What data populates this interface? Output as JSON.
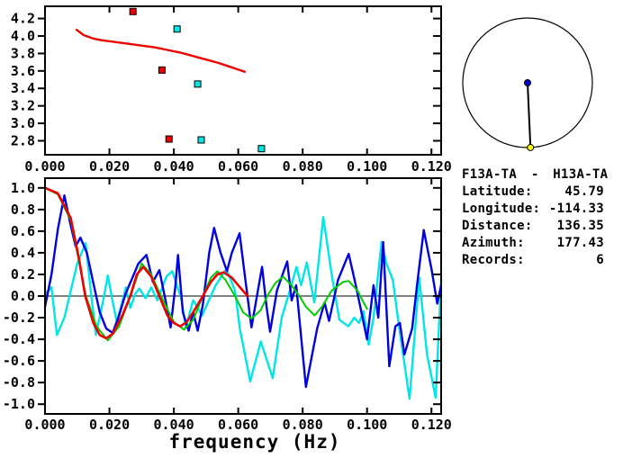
{
  "window": {
    "background": "#ffffff",
    "axis_color": "#000000"
  },
  "station_info": {
    "station_pair": "F13A-TA - H13A-TA",
    "fields": [
      {
        "label": "Latitude:",
        "value": "45.79"
      },
      {
        "label": "Longitude:",
        "value": "-114.33"
      },
      {
        "label": "Distance:",
        "value": "136.35"
      },
      {
        "label": "Azimuth:",
        "value": "177.43"
      },
      {
        "label": "Records:",
        "value": "6"
      }
    ]
  },
  "azimuth_map": {
    "azimuth_deg": 177.43,
    "circle_color": "#000000",
    "center_dot_color": "#0000cc",
    "station_dot_color": "#ffff00",
    "line_color": "#000000"
  },
  "chart_data": [
    {
      "id": "dispersion",
      "type": "scatter",
      "title": "",
      "xlabel": "",
      "ylabel": "",
      "xlim": [
        0,
        0.123
      ],
      "ylim": [
        2.64,
        4.34
      ],
      "grid": false,
      "xticks": [
        {
          "v": 0.0,
          "label": "0.000"
        },
        {
          "v": 0.02,
          "label": "0.020"
        },
        {
          "v": 0.04,
          "label": "0.040"
        },
        {
          "v": 0.06,
          "label": "0.060"
        },
        {
          "v": 0.08,
          "label": "0.080"
        },
        {
          "v": 0.1,
          "label": "0.100"
        },
        {
          "v": 0.12,
          "label": "0.120"
        }
      ],
      "yticks": [
        {
          "v": 4.2,
          "label": "4.2"
        },
        {
          "v": 4.0,
          "label": "4.0"
        },
        {
          "v": 3.8,
          "label": "3.8"
        },
        {
          "v": 3.6,
          "label": "3.6"
        },
        {
          "v": 3.4,
          "label": "3.4"
        },
        {
          "v": 3.2,
          "label": "3.2"
        },
        {
          "v": 3.0,
          "label": "3.0"
        },
        {
          "v": 2.8,
          "label": "2.8"
        }
      ],
      "series": [
        {
          "name": "model-dispersion-curve",
          "kind": "line",
          "color": "#ee0000",
          "width": 2.4,
          "points": [
            [
              0.0098,
              4.07
            ],
            [
              0.012,
              4.01
            ],
            [
              0.015,
              3.97
            ],
            [
              0.018,
              3.95
            ],
            [
              0.022,
              3.93
            ],
            [
              0.026,
              3.91
            ],
            [
              0.03,
              3.89
            ],
            [
              0.034,
              3.87
            ],
            [
              0.038,
              3.84
            ],
            [
              0.042,
              3.81
            ],
            [
              0.046,
              3.77
            ],
            [
              0.05,
              3.73
            ],
            [
              0.054,
              3.69
            ],
            [
              0.058,
              3.64
            ],
            [
              0.062,
              3.59
            ]
          ]
        },
        {
          "name": "picks-red",
          "kind": "marker",
          "marker": "square",
          "color": "#ee0000",
          "size": 7,
          "points": [
            [
              0.0273,
              4.28
            ],
            [
              0.0363,
              3.61
            ],
            [
              0.0385,
              2.82
            ]
          ]
        },
        {
          "name": "picks-cyan",
          "kind": "marker",
          "marker": "square",
          "color": "#00e6e6",
          "size": 7,
          "points": [
            [
              0.041,
              4.08
            ],
            [
              0.0474,
              3.45
            ],
            [
              0.0485,
              2.81
            ],
            [
              0.0672,
              2.71
            ]
          ]
        }
      ]
    },
    {
      "id": "cross-spectrum",
      "type": "line",
      "title": "",
      "xlabel": "frequency (Hz)",
      "ylabel": "",
      "xlim": [
        0,
        0.123
      ],
      "ylim": [
        -1.09,
        1.09
      ],
      "grid": false,
      "zero_line": true,
      "xticks": [
        {
          "v": 0.0,
          "label": "0.000"
        },
        {
          "v": 0.02,
          "label": "0.020"
        },
        {
          "v": 0.04,
          "label": "0.040"
        },
        {
          "v": 0.06,
          "label": "0.060"
        },
        {
          "v": 0.08,
          "label": "0.080"
        },
        {
          "v": 0.1,
          "label": "0.100"
        },
        {
          "v": 0.12,
          "label": "0.120"
        }
      ],
      "yticks": [
        {
          "v": 1.0,
          "label": "1.0"
        },
        {
          "v": 0.8,
          "label": "0.8"
        },
        {
          "v": 0.6,
          "label": "0.6"
        },
        {
          "v": 0.4,
          "label": "0.4"
        },
        {
          "v": 0.2,
          "label": "0.2"
        },
        {
          "v": 0.0,
          "label": "0.0"
        },
        {
          "v": -0.2,
          "label": "-0.2"
        },
        {
          "v": -0.4,
          "label": "-0.4"
        },
        {
          "v": -0.6,
          "label": "-0.6"
        },
        {
          "v": -0.8,
          "label": "-0.8"
        },
        {
          "v": -1.0,
          "label": "-1.0"
        }
      ],
      "series": [
        {
          "name": "trace-cyan",
          "kind": "line",
          "color": "#00e6e6",
          "width": 2.4,
          "points": [
            [
              0.0,
              0.02
            ],
            [
              0.002,
              0.08
            ],
            [
              0.0037,
              -0.36
            ],
            [
              0.006,
              -0.2
            ],
            [
              0.008,
              0.05
            ],
            [
              0.01,
              0.3
            ],
            [
              0.0126,
              0.49
            ],
            [
              0.014,
              0.1
            ],
            [
              0.0158,
              -0.36
            ],
            [
              0.018,
              -0.05
            ],
            [
              0.0195,
              0.19
            ],
            [
              0.021,
              -0.05
            ],
            [
              0.0223,
              -0.24
            ],
            [
              0.024,
              -0.05
            ],
            [
              0.0251,
              0.08
            ],
            [
              0.0265,
              -0.11
            ],
            [
              0.028,
              0.02
            ],
            [
              0.0293,
              0.07
            ],
            [
              0.0312,
              -0.02
            ],
            [
              0.033,
              0.08
            ],
            [
              0.0349,
              -0.04
            ],
            [
              0.0377,
              0.18
            ],
            [
              0.0395,
              0.23
            ],
            [
              0.0423,
              -0.02
            ],
            [
              0.0437,
              -0.29
            ],
            [
              0.046,
              -0.04
            ],
            [
              0.0488,
              -0.18
            ],
            [
              0.051,
              -0.03
            ],
            [
              0.053,
              0.1
            ],
            [
              0.0563,
              0.25
            ],
            [
              0.059,
              0.05
            ],
            [
              0.0605,
              -0.3
            ],
            [
              0.0637,
              -0.79
            ],
            [
              0.067,
              -0.42
            ],
            [
              0.0707,
              -0.76
            ],
            [
              0.0735,
              -0.2
            ],
            [
              0.076,
              0.05
            ],
            [
              0.0781,
              0.27
            ],
            [
              0.0795,
              0.1
            ],
            [
              0.0813,
              0.31
            ],
            [
              0.0836,
              -0.06
            ],
            [
              0.0864,
              0.73
            ],
            [
              0.089,
              0.2
            ],
            [
              0.0914,
              -0.22
            ],
            [
              0.0942,
              -0.28
            ],
            [
              0.096,
              -0.2
            ],
            [
              0.0975,
              -0.25
            ],
            [
              0.0989,
              -0.14
            ],
            [
              0.1005,
              -0.45
            ],
            [
              0.102,
              -0.2
            ],
            [
              0.1045,
              0.5
            ],
            [
              0.106,
              0.3
            ],
            [
              0.108,
              0.15
            ],
            [
              0.11,
              -0.3
            ],
            [
              0.1132,
              -0.95
            ],
            [
              0.1162,
              0.17
            ],
            [
              0.1186,
              -0.54
            ],
            [
              0.1213,
              -0.94
            ],
            [
              0.123,
              0.15
            ]
          ]
        },
        {
          "name": "trace-blue",
          "kind": "line",
          "color": "#0000dd",
          "width": 2.4,
          "points": [
            [
              0.0,
              -0.1
            ],
            [
              0.002,
              0.2
            ],
            [
              0.004,
              0.62
            ],
            [
              0.006,
              0.93
            ],
            [
              0.008,
              0.65
            ],
            [
              0.0095,
              0.46
            ],
            [
              0.011,
              0.54
            ],
            [
              0.013,
              0.4
            ],
            [
              0.015,
              0.12
            ],
            [
              0.017,
              -0.15
            ],
            [
              0.019,
              -0.3
            ],
            [
              0.021,
              -0.34
            ],
            [
              0.023,
              -0.18
            ],
            [
              0.025,
              0.02
            ],
            [
              0.027,
              0.16
            ],
            [
              0.029,
              0.3
            ],
            [
              0.0315,
              0.38
            ],
            [
              0.0335,
              0.13
            ],
            [
              0.0355,
              0.24
            ],
            [
              0.0375,
              -0.05
            ],
            [
              0.039,
              -0.29
            ],
            [
              0.0405,
              0.1
            ],
            [
              0.0413,
              0.38
            ],
            [
              0.0428,
              -0.15
            ],
            [
              0.0446,
              -0.32
            ],
            [
              0.046,
              -0.15
            ],
            [
              0.0474,
              -0.32
            ],
            [
              0.049,
              -0.08
            ],
            [
              0.051,
              0.4
            ],
            [
              0.0525,
              0.63
            ],
            [
              0.0545,
              0.4
            ],
            [
              0.0565,
              0.23
            ],
            [
              0.058,
              0.4
            ],
            [
              0.0604,
              0.58
            ],
            [
              0.062,
              0.2
            ],
            [
              0.0641,
              -0.29
            ],
            [
              0.0658,
              0.0
            ],
            [
              0.0674,
              0.27
            ],
            [
              0.0688,
              -0.1
            ],
            [
              0.0699,
              -0.33
            ],
            [
              0.072,
              0.05
            ],
            [
              0.0752,
              0.32
            ],
            [
              0.0766,
              -0.04
            ],
            [
              0.078,
              0.1
            ],
            [
              0.081,
              -0.84
            ],
            [
              0.0845,
              -0.3
            ],
            [
              0.0868,
              -0.06
            ],
            [
              0.0882,
              -0.23
            ],
            [
              0.091,
              0.15
            ],
            [
              0.0943,
              0.39
            ],
            [
              0.0965,
              0.1
            ],
            [
              0.1,
              -0.4
            ],
            [
              0.102,
              0.1
            ],
            [
              0.1035,
              -0.2
            ],
            [
              0.105,
              0.5
            ],
            [
              0.1069,
              -0.65
            ],
            [
              0.1088,
              -0.28
            ],
            [
              0.1102,
              -0.25
            ],
            [
              0.1116,
              -0.54
            ],
            [
              0.114,
              -0.3
            ],
            [
              0.1155,
              0.1
            ],
            [
              0.1176,
              0.61
            ],
            [
              0.12,
              0.25
            ],
            [
              0.1218,
              -0.07
            ],
            [
              0.123,
              0.1
            ]
          ]
        },
        {
          "name": "fit-green",
          "kind": "line",
          "color": "#00cc00",
          "width": 2.0,
          "points": [
            [
              0.0,
              1.0
            ],
            [
              0.004,
              0.94
            ],
            [
              0.008,
              0.7
            ],
            [
              0.0127,
              0.0
            ],
            [
              0.016,
              -0.28
            ],
            [
              0.0195,
              -0.41
            ],
            [
              0.023,
              -0.28
            ],
            [
              0.0265,
              0.0
            ],
            [
              0.03,
              0.3
            ],
            [
              0.033,
              0.2
            ],
            [
              0.036,
              0.0
            ],
            [
              0.04,
              -0.24
            ],
            [
              0.0432,
              -0.31
            ],
            [
              0.046,
              -0.22
            ],
            [
              0.049,
              0.0
            ],
            [
              0.0515,
              0.17
            ],
            [
              0.0535,
              0.23
            ],
            [
              0.056,
              0.15
            ],
            [
              0.059,
              0.0
            ],
            [
              0.0615,
              -0.15
            ],
            [
              0.0641,
              -0.21
            ],
            [
              0.067,
              -0.13
            ],
            [
              0.069,
              0.0
            ],
            [
              0.0715,
              0.12
            ],
            [
              0.0739,
              0.18
            ],
            [
              0.0765,
              0.1
            ],
            [
              0.079,
              0.0
            ],
            [
              0.081,
              -0.1
            ],
            [
              0.0837,
              -0.18
            ],
            [
              0.086,
              -0.1
            ],
            [
              0.089,
              0.05
            ],
            [
              0.0925,
              0.13
            ],
            [
              0.0943,
              0.14
            ],
            [
              0.097,
              0.05
            ],
            [
              0.1,
              -0.12
            ]
          ]
        },
        {
          "name": "fit-red",
          "kind": "line",
          "color": "#ee0000",
          "width": 2.6,
          "points": [
            [
              0.0,
              1.0
            ],
            [
              0.004,
              0.95
            ],
            [
              0.008,
              0.72
            ],
            [
              0.0105,
              0.35
            ],
            [
              0.0125,
              0.0
            ],
            [
              0.015,
              -0.25
            ],
            [
              0.017,
              -0.36
            ],
            [
              0.019,
              -0.39
            ],
            [
              0.021,
              -0.35
            ],
            [
              0.024,
              -0.18
            ],
            [
              0.0265,
              0.0
            ],
            [
              0.0285,
              0.2
            ],
            [
              0.0305,
              0.27
            ],
            [
              0.033,
              0.18
            ],
            [
              0.0355,
              0.0
            ],
            [
              0.038,
              -0.18
            ],
            [
              0.04,
              -0.25
            ],
            [
              0.042,
              -0.28
            ],
            [
              0.044,
              -0.24
            ],
            [
              0.046,
              -0.15
            ],
            [
              0.049,
              0.0
            ],
            [
              0.0515,
              0.13
            ],
            [
              0.0535,
              0.2
            ],
            [
              0.0555,
              0.22
            ],
            [
              0.058,
              0.17
            ],
            [
              0.06,
              0.1
            ],
            [
              0.062,
              0.03
            ],
            [
              0.063,
              0.0
            ]
          ]
        }
      ]
    }
  ]
}
